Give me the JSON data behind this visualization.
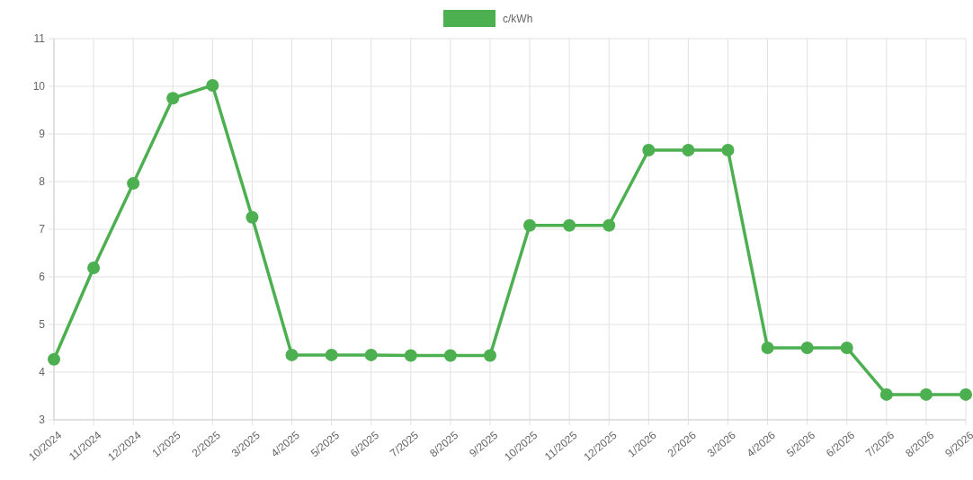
{
  "chart_data": {
    "type": "line",
    "categories": [
      "10/2024",
      "11/2024",
      "12/2024",
      "1/2025",
      "2/2025",
      "3/2025",
      "4/2025",
      "5/2025",
      "6/2025",
      "7/2025",
      "8/2025",
      "9/2025",
      "10/2025",
      "11/2025",
      "12/2025",
      "1/2026",
      "2/2026",
      "3/2026",
      "4/2026",
      "5/2026",
      "6/2026",
      "7/2026",
      "8/2026",
      "9/2026"
    ],
    "series": [
      {
        "name": "c/kWh",
        "color": "#4caf50",
        "values": [
          4.27,
          6.19,
          7.96,
          9.75,
          10.02,
          7.25,
          4.36,
          4.36,
          4.36,
          4.35,
          4.35,
          4.35,
          7.08,
          7.08,
          7.08,
          8.66,
          8.66,
          8.66,
          4.51,
          4.51,
          4.51,
          3.53,
          3.53,
          3.53
        ]
      }
    ],
    "ylim": [
      3,
      11
    ],
    "yticks": [
      3,
      4,
      5,
      6,
      7,
      8,
      9,
      10,
      11
    ],
    "grid": true,
    "legend": "top",
    "marker": "circle",
    "line_style": "solid"
  }
}
